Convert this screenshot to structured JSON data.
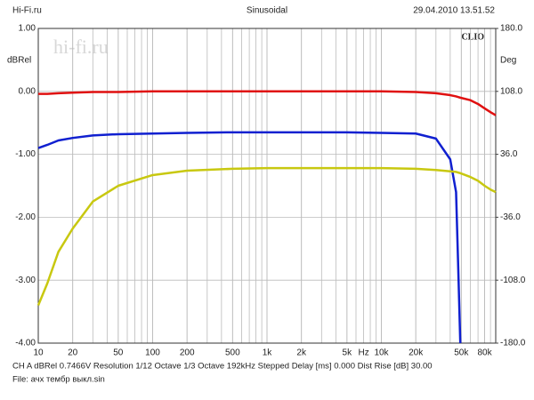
{
  "header": {
    "left": "Hi-Fi.ru",
    "center": "Sinusoidal",
    "right": "29.04.2010 13.51.52"
  },
  "watermark": "hi-fi.ru",
  "brand": "CLIO",
  "footer": {
    "settings": "CH A   dBRel 0.7466V   Resolution 1/12 Octave   1/3 Octave   192kHz   Stepped   Delay [ms] 0.000   Dist Rise [dB] 30.00",
    "file": "File: ачх тембр выкл.sin"
  },
  "chart_data": {
    "type": "line",
    "y_label": "dBRel",
    "y2_label": "Deg",
    "x_label": "Hz",
    "xscale": "log",
    "grid": true,
    "xlim": [
      10,
      100000
    ],
    "xticks": [
      10,
      20,
      50,
      100,
      200,
      500,
      {
        "value": 1000,
        "label": "1k"
      },
      {
        "value": 2000,
        "label": "2k"
      },
      {
        "value": 5000,
        "label": "5k"
      },
      {
        "value": 10000,
        "label": "10k"
      },
      {
        "value": 20000,
        "label": "20k"
      },
      {
        "value": 50000,
        "label": "50k"
      },
      {
        "value": 80000,
        "label": "80k"
      }
    ],
    "ylim": [
      -4,
      1
    ],
    "yticks": [
      {
        "value": 1,
        "label": "1.00"
      },
      {
        "value": 0,
        "label": "0.00"
      },
      {
        "value": -1,
        "label": "-1.00"
      },
      {
        "value": -2,
        "label": "-2.00"
      },
      {
        "value": -3,
        "label": "-3.00"
      },
      {
        "value": -4,
        "label": "-4.00"
      }
    ],
    "y2lim": [
      -180,
      180
    ],
    "y2ticks": [
      {
        "value": 180,
        "label": "180.0"
      },
      {
        "value": 108,
        "label": "108.0"
      },
      {
        "value": 36,
        "label": "36.0"
      },
      {
        "value": -36,
        "label": "-36.0"
      },
      {
        "value": -108,
        "label": "-108.0"
      },
      {
        "value": -180,
        "label": "-180.0"
      }
    ],
    "x": [
      10,
      12,
      15,
      20,
      30,
      50,
      100,
      200,
      500,
      1000,
      2000,
      5000,
      10000,
      20000,
      30000,
      40000,
      45000,
      47000,
      49000,
      60000,
      70000,
      80000,
      90000,
      100000
    ],
    "series": [
      {
        "color": "#e01010",
        "values": [
          -0.04,
          -0.04,
          -0.03,
          -0.02,
          -0.01,
          -0.01,
          0,
          0,
          0,
          0,
          0,
          0,
          0,
          -0.01,
          -0.03,
          -0.06,
          -0.08,
          -0.09,
          -0.1,
          -0.14,
          -0.2,
          -0.27,
          -0.33,
          -0.38
        ]
      },
      {
        "color": "#1020d0",
        "values": [
          -0.9,
          -0.85,
          -0.78,
          -0.74,
          -0.7,
          -0.68,
          -0.67,
          -0.66,
          -0.65,
          -0.65,
          -0.65,
          -0.65,
          -0.66,
          -0.67,
          -0.75,
          -1.08,
          -1.6,
          -2.8,
          -4.0,
          null,
          null,
          null,
          null,
          null
        ]
      },
      {
        "color": "#c8c810",
        "values": [
          -3.4,
          -3.05,
          -2.55,
          -2.18,
          -1.75,
          -1.5,
          -1.33,
          -1.26,
          -1.23,
          -1.22,
          -1.22,
          -1.22,
          -1.22,
          -1.23,
          -1.25,
          -1.27,
          -1.28,
          -1.29,
          -1.3,
          -1.36,
          -1.42,
          -1.5,
          -1.56,
          -1.6
        ]
      }
    ]
  }
}
